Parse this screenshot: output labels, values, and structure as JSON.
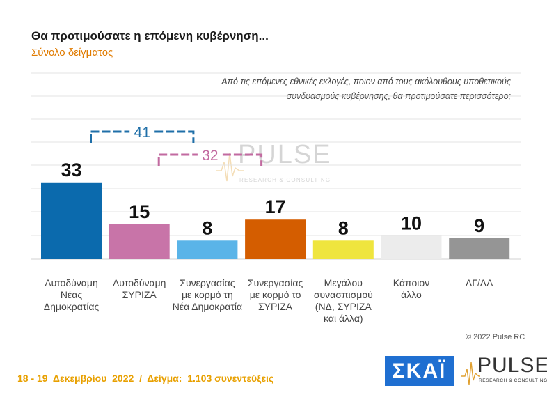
{
  "header": {
    "title": "Θα προτιμούσατε η επόμενη κυβέρνηση...",
    "subtitle": "Σύνολο δείγματος",
    "question_line1": "Από τις επόμενες εθνικές εκλογές, ποιον από τους ακόλουθους υποθετικούς",
    "question_line2": "συνδυασμούς κυβέρνησης, θα προτιμούσατε περισσότερο;"
  },
  "footer": {
    "copyright": "© 2022 Pulse RC",
    "fieldwork": "18 - 19  Δεκεμβρίου  2022  /  Δείγμα:  1.103 συνεντεύξεις"
  },
  "logos": {
    "skai": "ΣΚΑΪ",
    "pulse_word": "PULSE",
    "pulse_tagline": "RESEARCH & CONSULTING"
  },
  "chart_data": {
    "type": "bar",
    "title": "Θα προτιμούσατε η επόμενη κυβέρνηση...",
    "subtitle": "Σύνολο δείγματος",
    "ylim": [
      0,
      45
    ],
    "grid": true,
    "categories": [
      [
        "Αυτοδύναμη",
        "Νέας",
        "Δημοκρατίας"
      ],
      [
        "Αυτοδύναμη",
        "ΣΥΡΙΖΑ"
      ],
      [
        "Συνεργασίας",
        "με κορμό τη",
        "Νέα Δημοκρατία"
      ],
      [
        "Συνεργασίας",
        "με κορμό το",
        "ΣΥΡΙΖΑ"
      ],
      [
        "Μεγάλου",
        "συνασπισμού",
        "(ΝΔ, ΣΥΡΙΖΑ",
        "και άλλα)"
      ],
      [
        "Κάποιον",
        "άλλο"
      ],
      [
        "ΔΓ/ΔΑ"
      ]
    ],
    "values": [
      33,
      15,
      8,
      17,
      8,
      10,
      9
    ],
    "colors": [
      "#0b6aad",
      "#c874a8",
      "#5ab4e8",
      "#d45d00",
      "#efe53e",
      "#ececec",
      "#959595"
    ],
    "brackets": [
      {
        "label": "41",
        "from": 0,
        "to": 2,
        "color": "#1f6fa8"
      },
      {
        "label": "32",
        "from": 1,
        "to": 3,
        "color": "#c26aa0"
      }
    ]
  }
}
